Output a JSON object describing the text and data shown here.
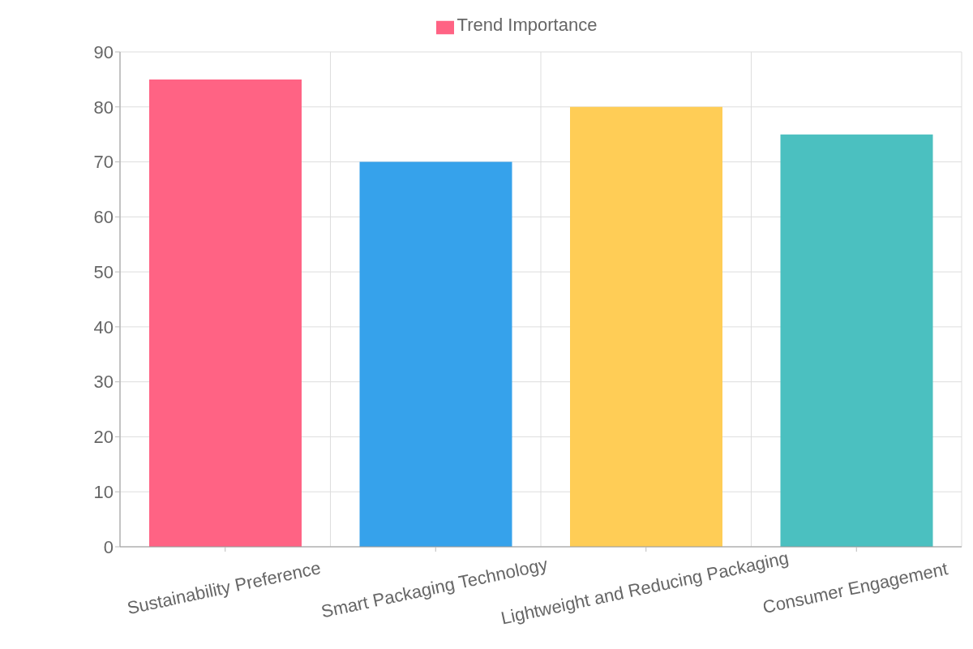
{
  "chart_data": {
    "type": "bar",
    "categories": [
      "Sustainability Preference",
      "Smart Packaging Technology",
      "Lightweight and Reducing Packaging",
      "Consumer Engagement"
    ],
    "series": [
      {
        "name": "Trend Importance",
        "color": "#ff6384",
        "values": [
          85,
          null,
          null,
          null
        ]
      },
      {
        "color": "#36a2eb",
        "values": [
          null,
          70,
          null,
          null
        ]
      },
      {
        "color": "#ffcd56",
        "values": [
          null,
          null,
          80,
          null
        ]
      },
      {
        "color": "#4bc0c0",
        "values": [
          null,
          null,
          null,
          75
        ]
      }
    ],
    "ylim": [
      0,
      90
    ],
    "yticks": [
      0,
      10,
      20,
      30,
      40,
      50,
      60,
      70,
      80,
      90
    ],
    "grid": true,
    "legend": "top"
  }
}
